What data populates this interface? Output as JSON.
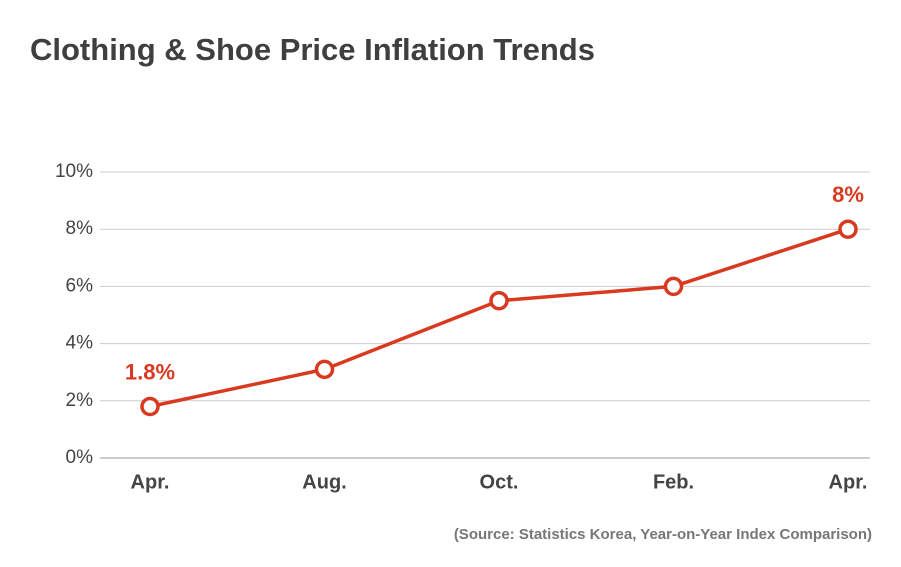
{
  "chart_data": {
    "type": "line",
    "title": "Clothing & Shoe Price Inflation Trends",
    "source": "(Source: Statistics Korea, Year-on-Year Index Comparison)",
    "categories": [
      "Apr.",
      "Aug.",
      "Oct.",
      "Feb.",
      "Apr."
    ],
    "series": [
      {
        "name": "Clothing & Shoe Price Inflation",
        "color": "#d93a1f",
        "values": [
          1.8,
          3.1,
          5.5,
          6.0,
          8.0
        ],
        "value_labels": [
          "1.8%",
          null,
          null,
          null,
          "8%"
        ]
      }
    ],
    "ylim": [
      0,
      10
    ],
    "yticks": [
      {
        "value": 0,
        "label": "0%"
      },
      {
        "value": 2,
        "label": "2%"
      },
      {
        "value": 4,
        "label": "4%"
      },
      {
        "value": 6,
        "label": "6%"
      },
      {
        "value": 8,
        "label": "8%"
      },
      {
        "value": 10,
        "label": "10%"
      }
    ],
    "grid": true
  }
}
